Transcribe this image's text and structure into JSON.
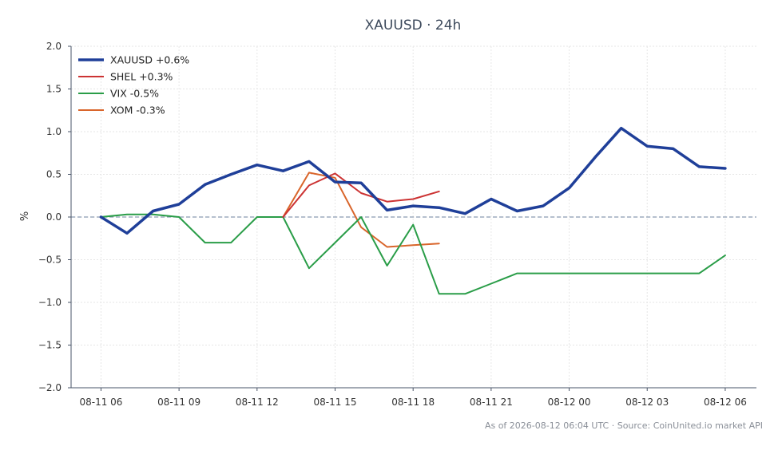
{
  "chart_data": {
    "type": "line",
    "title": "XAUUSD · 24h",
    "ylabel": "%",
    "xlabel": "",
    "ylim": [
      -2.0,
      2.0
    ],
    "yticks": [
      "2.0",
      "1.5",
      "1.0",
      "0.5",
      "0.0",
      "−0.5",
      "−1.0",
      "−1.5",
      "−2.0"
    ],
    "ytick_values": [
      2.0,
      1.5,
      1.0,
      0.5,
      0.0,
      -0.5,
      -1.0,
      -1.5,
      -2.0
    ],
    "xticks": [
      "08-11 06",
      "08-11 09",
      "08-11 12",
      "08-11 15",
      "08-11 18",
      "08-11 21",
      "08-12 00",
      "08-12 03",
      "08-12 06"
    ],
    "xtick_hours": [
      0,
      3,
      6,
      9,
      12,
      15,
      18,
      21,
      24
    ],
    "x_hours_range": [
      -1.15,
      25.2
    ],
    "grid": true,
    "legend_position": "top-left",
    "zero_line": true,
    "series": [
      {
        "name": "XAUUSD +0.6%",
        "color": "#1f3f99",
        "width": 3.5,
        "x": [
          0,
          1,
          2,
          3,
          4,
          5,
          6,
          7,
          8,
          9,
          10,
          11,
          12,
          13,
          14,
          15,
          16,
          17,
          18,
          19,
          20,
          21,
          22,
          23,
          24
        ],
        "values": [
          0.0,
          -0.19,
          0.07,
          0.15,
          0.38,
          0.5,
          0.61,
          0.54,
          0.65,
          0.41,
          0.4,
          0.08,
          0.13,
          0.11,
          0.04,
          0.21,
          0.07,
          0.13,
          0.34,
          0.7,
          1.04,
          0.83,
          0.8,
          0.59,
          0.57
        ]
      },
      {
        "name": "SHEL +0.3%",
        "color": "#cc3333",
        "width": 2,
        "x": [
          7,
          8,
          9,
          10,
          11,
          12,
          13
        ],
        "values": [
          0.0,
          0.37,
          0.51,
          0.28,
          0.18,
          0.21,
          0.3
        ]
      },
      {
        "name": "VIX -0.5%",
        "color": "#2a9d48",
        "width": 2,
        "x": [
          0,
          1,
          2,
          3,
          4,
          5,
          6,
          7,
          8,
          9,
          10,
          11,
          12,
          13,
          14,
          15,
          16,
          17,
          18,
          19,
          20,
          21,
          22,
          23,
          24
        ],
        "values": [
          0.0,
          0.03,
          0.03,
          0.0,
          -0.3,
          -0.3,
          0.0,
          0.0,
          -0.6,
          -0.3,
          0.0,
          -0.57,
          -0.09,
          -0.9,
          -0.9,
          -0.78,
          -0.66,
          -0.66,
          -0.66,
          -0.66,
          -0.66,
          -0.66,
          -0.66,
          -0.66,
          -0.45
        ]
      },
      {
        "name": "XOM -0.3%",
        "color": "#d9652b",
        "width": 2,
        "x": [
          7,
          8,
          9,
          10,
          11,
          12,
          13
        ],
        "values": [
          0.0,
          0.52,
          0.46,
          -0.12,
          -0.35,
          -0.33,
          -0.31
        ]
      }
    ],
    "footer": "As of 2026-08-12 06:04 UTC · Source: CoinUnited.io market API"
  }
}
